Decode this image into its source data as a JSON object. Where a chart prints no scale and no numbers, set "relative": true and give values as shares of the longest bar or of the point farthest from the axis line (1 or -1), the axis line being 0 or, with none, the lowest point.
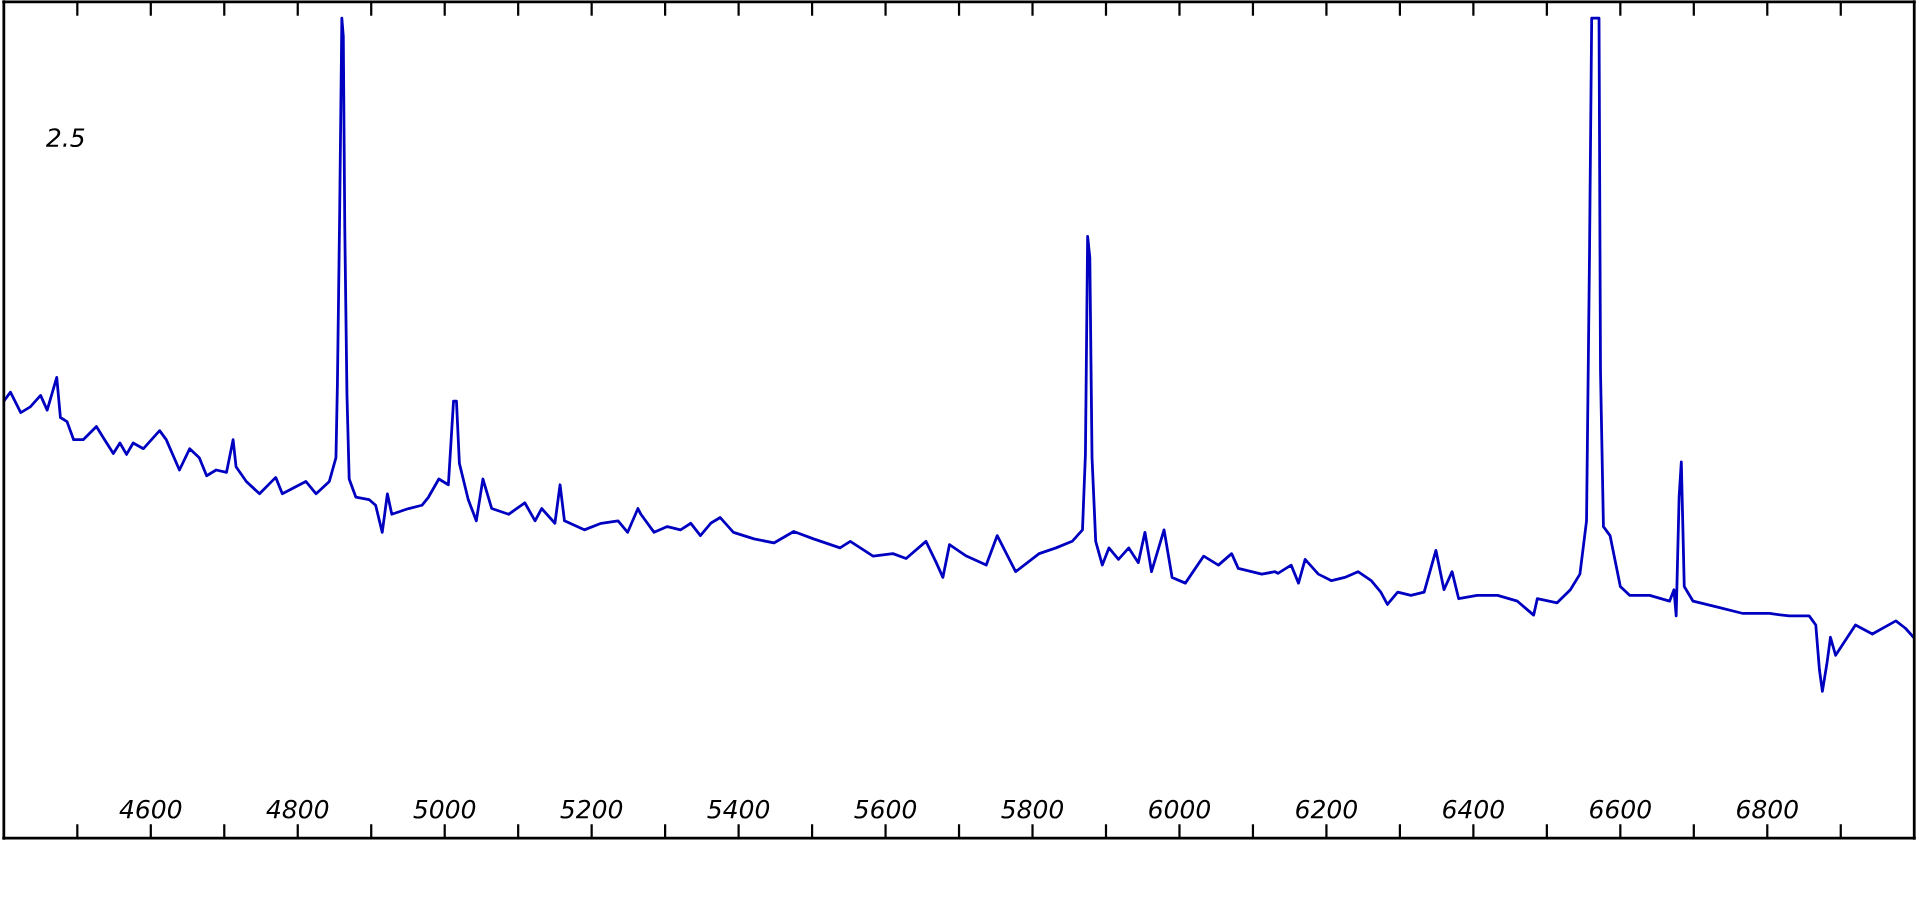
{
  "chart_data": {
    "type": "line",
    "relative": true,
    "annotations": [
      "2.5"
    ],
    "xlim": [
      4400,
      7000
    ],
    "xticks": [
      {
        "value": 4500,
        "label": null
      },
      4600,
      {
        "value": 4700,
        "label": null
      },
      4800,
      {
        "value": 4900,
        "label": null
      },
      5000,
      {
        "value": 5100,
        "label": null
      },
      5200,
      {
        "value": 5300,
        "label": null
      },
      5400,
      {
        "value": 5500,
        "label": null
      },
      5600,
      {
        "value": 5700,
        "label": null
      },
      5800,
      {
        "value": 5900,
        "label": null
      },
      6000,
      {
        "value": 6100,
        "label": null
      },
      6200,
      {
        "value": 6300,
        "label": null
      },
      6400,
      {
        "value": 6500,
        "label": null
      },
      6600,
      {
        "value": 6700,
        "label": null
      },
      6800,
      {
        "value": 6900,
        "label": null
      }
    ],
    "grid": false,
    "legend": false,
    "series": [
      {
        "color": "#0000c0",
        "x": [
          4400,
          4409,
          4423,
          4436,
          4450,
          4459,
          4472,
          4477,
          4486,
          4495,
          4508,
          4526,
          4535,
          4549,
          4558,
          4567,
          4576,
          4590,
          4612,
          4621,
          4639,
          4653,
          4666,
          4676,
          4689,
          4703,
          4712,
          4716,
          4730,
          4748,
          4770,
          4779,
          4811,
          4825,
          4843,
          4852,
          4854,
          4857,
          4860,
          4862,
          4864,
          4867,
          4870,
          4879,
          4897,
          4906,
          4915,
          4922,
          4928,
          4951,
          4969,
          4978,
          4992,
          5005,
          5012,
          5016,
          5020,
          5032,
          5043,
          5052,
          5064,
          5087,
          5109,
          5123,
          5132,
          5150,
          5157,
          5163,
          5190,
          5213,
          5236,
          5249,
          5263,
          5267,
          5285,
          5303,
          5321,
          5335,
          5348,
          5362,
          5375,
          5393,
          5421,
          5448,
          5475,
          5502,
          5538,
          5552,
          5583,
          5610,
          5628,
          5655,
          5669,
          5678,
          5687,
          5710,
          5737,
          5752,
          5777,
          5809,
          5832,
          5854,
          5868,
          5872,
          5875,
          5878,
          5881,
          5886,
          5895,
          5904,
          5917,
          5931,
          5944,
          5953,
          5962,
          5979,
          5990,
          6008,
          6033,
          6053,
          6071,
          6080,
          6112,
          6130,
          6134,
          6152,
          6162,
          6171,
          6189,
          6207,
          6225,
          6243,
          6261,
          6274,
          6283,
          6297,
          6315,
          6333,
          6349,
          6360,
          6371,
          6380,
          6405,
          6433,
          6460,
          6482,
          6487,
          6514,
          6532,
          6545,
          6554,
          6558,
          6561,
          6571,
          6573,
          6577,
          6586,
          6600,
          6613,
          6640,
          6667,
          6673,
          6676,
          6680,
          6683,
          6687,
          6699,
          6731,
          6767,
          6803,
          6830,
          6857,
          6866,
          6871,
          6875,
          6881,
          6886,
          6893,
          6920,
          6943,
          6975,
          6988,
          6999
        ],
        "values": [
          0.533,
          0.544,
          0.519,
          0.526,
          0.54,
          0.522,
          0.562,
          0.513,
          0.508,
          0.486,
          0.486,
          0.502,
          0.489,
          0.469,
          0.482,
          0.468,
          0.482,
          0.475,
          0.497,
          0.486,
          0.449,
          0.475,
          0.464,
          0.442,
          0.449,
          0.446,
          0.486,
          0.453,
          0.435,
          0.42,
          0.44,
          0.42,
          0.435,
          0.42,
          0.435,
          0.464,
          0.555,
          0.759,
          1.0,
          0.978,
          0.745,
          0.54,
          0.438,
          0.416,
          0.413,
          0.406,
          0.373,
          0.42,
          0.395,
          0.402,
          0.406,
          0.416,
          0.438,
          0.431,
          0.533,
          0.533,
          0.457,
          0.413,
          0.387,
          0.438,
          0.402,
          0.395,
          0.409,
          0.387,
          0.402,
          0.384,
          0.431,
          0.387,
          0.376,
          0.384,
          0.387,
          0.373,
          0.402,
          0.395,
          0.373,
          0.38,
          0.376,
          0.384,
          0.369,
          0.384,
          0.391,
          0.373,
          0.365,
          0.36,
          0.374,
          0.365,
          0.354,
          0.362,
          0.344,
          0.347,
          0.341,
          0.362,
          0.336,
          0.318,
          0.358,
          0.344,
          0.333,
          0.369,
          0.325,
          0.347,
          0.354,
          0.362,
          0.376,
          0.468,
          0.734,
          0.708,
          0.464,
          0.362,
          0.333,
          0.354,
          0.34,
          0.354,
          0.336,
          0.373,
          0.325,
          0.376,
          0.318,
          0.311,
          0.344,
          0.333,
          0.347,
          0.329,
          0.322,
          0.325,
          0.323,
          0.333,
          0.311,
          0.34,
          0.322,
          0.314,
          0.318,
          0.325,
          0.314,
          0.3,
          0.285,
          0.3,
          0.296,
          0.3,
          0.351,
          0.303,
          0.325,
          0.292,
          0.296,
          0.296,
          0.289,
          0.272,
          0.292,
          0.287,
          0.303,
          0.322,
          0.387,
          0.708,
          1.0,
          1.0,
          0.57,
          0.38,
          0.369,
          0.307,
          0.296,
          0.296,
          0.289,
          0.303,
          0.271,
          0.416,
          0.459,
          0.307,
          0.289,
          0.282,
          0.274,
          0.274,
          0.271,
          0.271,
          0.26,
          0.205,
          0.179,
          0.212,
          0.245,
          0.223,
          0.26,
          0.249,
          0.265,
          0.256,
          0.245
        ]
      }
    ]
  }
}
